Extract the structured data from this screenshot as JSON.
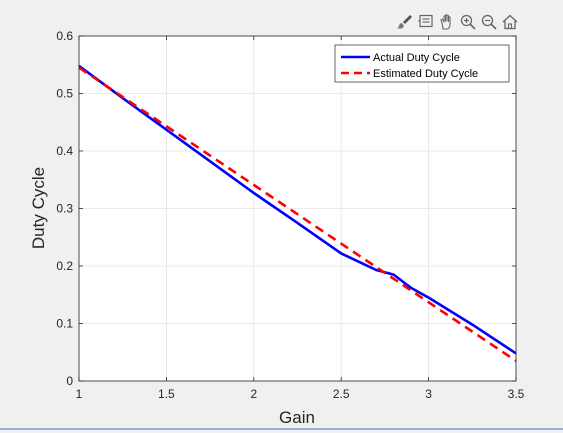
{
  "toolbar": {
    "icons": [
      "brush-icon",
      "data-tip-icon",
      "pan-hand-icon",
      "zoom-in-icon",
      "zoom-out-icon",
      "home-icon"
    ]
  },
  "colors": {
    "background": "#f0f0f0",
    "axes_background": "#ffffff",
    "actual": "#0000ff",
    "estimated": "#ff0000",
    "grid": "#e3e3e3"
  },
  "chart_data": {
    "type": "line",
    "title": "",
    "xlabel": "Gain",
    "ylabel": "Duty Cycle",
    "xlim": [
      1,
      3.5
    ],
    "ylim": [
      0,
      0.6
    ],
    "xticks": [
      1,
      1.5,
      2,
      2.5,
      3,
      3.5
    ],
    "xtick_labels": [
      "1",
      "1.5",
      "2",
      "2.5",
      "3",
      "3.5"
    ],
    "yticks": [
      0,
      0.1,
      0.2,
      0.3,
      0.4,
      0.5,
      0.6
    ],
    "ytick_labels": [
      "0",
      "0.1",
      "0.2",
      "0.3",
      "0.4",
      "0.5",
      "0.6"
    ],
    "grid": true,
    "legend_position": "top-right",
    "series": [
      {
        "name": "Actual Duty Cycle",
        "style": "solid",
        "color": "#0000ff",
        "x": [
          1,
          1.25,
          1.5,
          1.75,
          2,
          2.25,
          2.5,
          2.7,
          2.8,
          2.9,
          3.0,
          3.25,
          3.5
        ],
        "y": [
          0.548,
          0.492,
          0.437,
          0.382,
          0.327,
          0.275,
          0.222,
          0.193,
          0.185,
          0.162,
          0.145,
          0.098,
          0.048
        ]
      },
      {
        "name": "Estimated Duty Cycle",
        "style": "dashed",
        "color": "#ff0000",
        "x": [
          1,
          3.5
        ],
        "y": [
          0.545,
          0.035
        ]
      }
    ]
  }
}
